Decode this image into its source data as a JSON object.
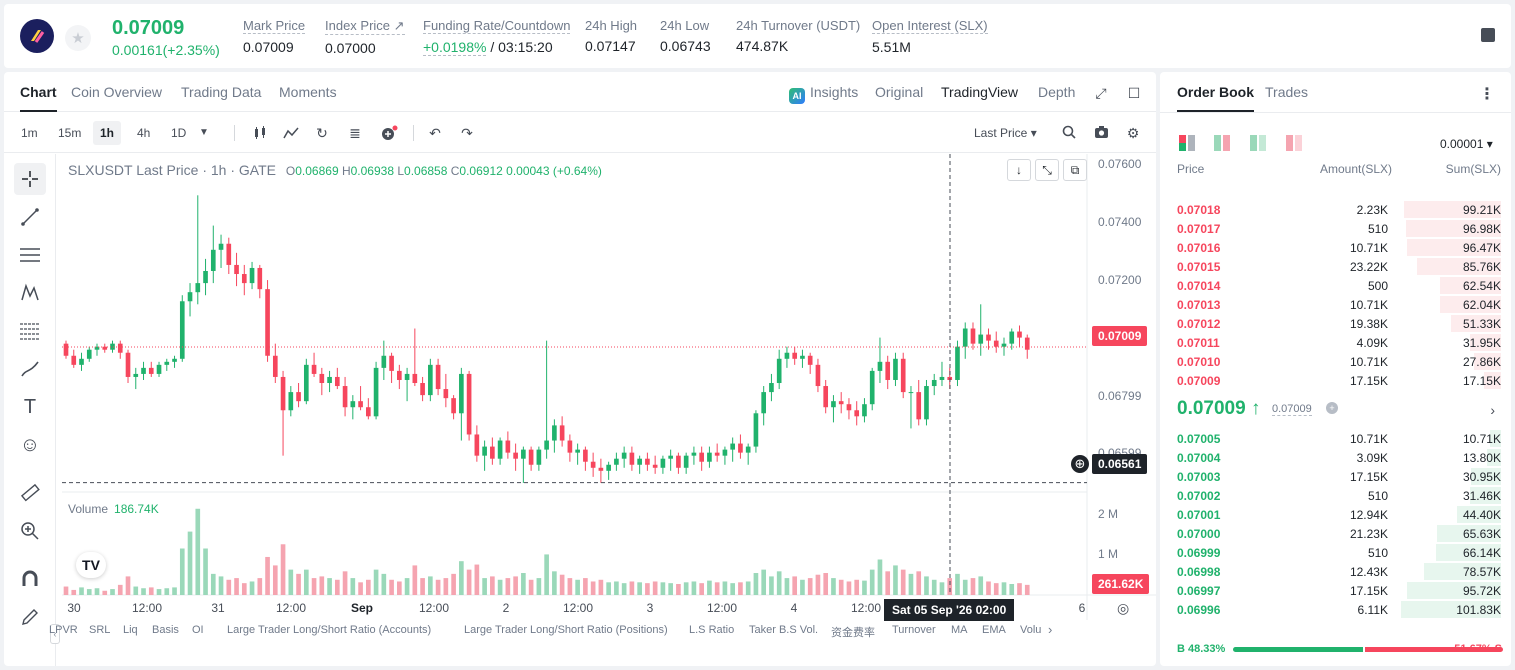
{
  "header": {
    "last_price": "0.07009",
    "change": "0.00161(+2.35%)",
    "stats": [
      {
        "label": "Mark Price",
        "value": "0.07009"
      },
      {
        "label": "Index Price ↗",
        "value": "0.07000"
      },
      {
        "label": "Funding Rate/Countdown",
        "value_rate": "+0.0198%",
        "value_countdown": "/ 03:15:20"
      },
      {
        "label": "24h High",
        "value": "0.07147"
      },
      {
        "label": "24h Low",
        "value": "0.06743"
      },
      {
        "label": "24h Turnover (USDT)",
        "value": "474.87K"
      },
      {
        "label": "Open Interest (SLX)",
        "value": "5.51M"
      }
    ]
  },
  "chart_tabs": {
    "left": [
      "Chart",
      "Coin Overview",
      "Trading Data",
      "Moments"
    ],
    "right": [
      "Insights",
      "Original",
      "TradingView",
      "Depth"
    ],
    "ai_badge": "AI"
  },
  "toolbar": {
    "timeframes": [
      "1m",
      "15m",
      "1h",
      "4h",
      "1D"
    ],
    "active_timeframe": "1h",
    "price_type": "Last Price ▾"
  },
  "chart_legend": {
    "symbol": "SLXUSDT Last Price · 1h · GATE",
    "ohlc": {
      "o": "0.06869",
      "h": "0.06938",
      "l": "0.06858",
      "c": "0.06912",
      "chg": "0.00043 (+0.64%)"
    },
    "volume_label": "Volume",
    "volume_value": "186.74K"
  },
  "chart_data": {
    "type": "candlestick",
    "title": "SLXUSDT Last Price · 1h · GATE",
    "y_ticks": [
      "0.07600",
      "0.07400",
      "0.07200",
      "0.06799",
      "0.06599"
    ],
    "volume_ticks": [
      "2 M",
      "1 M"
    ],
    "x_ticks": [
      "30",
      "12:00",
      "31",
      "12:00",
      "Sep",
      "12:00",
      "2",
      "12:00",
      "3",
      "12:00",
      "4",
      "12:00",
      "6"
    ],
    "ylim": [
      0.0653,
      0.0762
    ],
    "last_price": 0.07009,
    "crosshair_price": 0.06561,
    "current_volume": "261.62K",
    "crosshair_time": "Sat 05 Sep '26   02:00",
    "candles": [
      [
        0.0702,
        0.0703,
        0.0697,
        0.0698
      ],
      [
        0.0698,
        0.07,
        0.0694,
        0.0695
      ],
      [
        0.0695,
        0.0699,
        0.0693,
        0.0697
      ],
      [
        0.0697,
        0.0701,
        0.0696,
        0.07
      ],
      [
        0.07,
        0.0702,
        0.0698,
        0.0701
      ],
      [
        0.0701,
        0.0702,
        0.0699,
        0.07
      ],
      [
        0.07,
        0.0703,
        0.0699,
        0.0702
      ],
      [
        0.0702,
        0.0703,
        0.0697,
        0.0699
      ],
      [
        0.0699,
        0.07,
        0.0689,
        0.0691
      ],
      [
        0.0691,
        0.0694,
        0.0687,
        0.0692
      ],
      [
        0.0692,
        0.0696,
        0.069,
        0.0694
      ],
      [
        0.0694,
        0.0696,
        0.0691,
        0.0692
      ],
      [
        0.0692,
        0.0696,
        0.0691,
        0.0695
      ],
      [
        0.0695,
        0.0697,
        0.0693,
        0.0696
      ],
      [
        0.0696,
        0.0698,
        0.0694,
        0.0697
      ],
      [
        0.0697,
        0.0718,
        0.0696,
        0.0716
      ],
      [
        0.0716,
        0.0722,
        0.0711,
        0.0719
      ],
      [
        0.0719,
        0.0751,
        0.0715,
        0.0722
      ],
      [
        0.0722,
        0.073,
        0.0718,
        0.0726
      ],
      [
        0.0726,
        0.0741,
        0.0722,
        0.0733
      ],
      [
        0.0733,
        0.0738,
        0.0727,
        0.0735
      ],
      [
        0.0735,
        0.0737,
        0.0725,
        0.0728
      ],
      [
        0.0728,
        0.0732,
        0.0721,
        0.0725
      ],
      [
        0.0725,
        0.0728,
        0.0718,
        0.0722
      ],
      [
        0.0722,
        0.0729,
        0.072,
        0.0727
      ],
      [
        0.0727,
        0.0728,
        0.0717,
        0.072
      ],
      [
        0.072,
        0.0723,
        0.0696,
        0.0698
      ],
      [
        0.0698,
        0.0702,
        0.0689,
        0.0691
      ],
      [
        0.0691,
        0.0693,
        0.0665,
        0.068
      ],
      [
        0.068,
        0.0688,
        0.0678,
        0.0686
      ],
      [
        0.0686,
        0.0689,
        0.0681,
        0.0683
      ],
      [
        0.0683,
        0.0697,
        0.0682,
        0.0695
      ],
      [
        0.0695,
        0.0699,
        0.0691,
        0.0692
      ],
      [
        0.0692,
        0.0694,
        0.0685,
        0.0689
      ],
      [
        0.0689,
        0.0693,
        0.0686,
        0.0691
      ],
      [
        0.0691,
        0.0694,
        0.0687,
        0.0688
      ],
      [
        0.0688,
        0.0691,
        0.0678,
        0.0681
      ],
      [
        0.0681,
        0.0685,
        0.0677,
        0.0683
      ],
      [
        0.0683,
        0.0688,
        0.068,
        0.0681
      ],
      [
        0.0681,
        0.0684,
        0.0677,
        0.0678
      ],
      [
        0.0678,
        0.0696,
        0.0677,
        0.0694
      ],
      [
        0.0694,
        0.0703,
        0.069,
        0.0698
      ],
      [
        0.0698,
        0.0699,
        0.0689,
        0.0693
      ],
      [
        0.0693,
        0.0695,
        0.0687,
        0.069
      ],
      [
        0.069,
        0.0694,
        0.0683,
        0.0692
      ],
      [
        0.0692,
        0.0707,
        0.0688,
        0.0689
      ],
      [
        0.0689,
        0.0691,
        0.0683,
        0.0685
      ],
      [
        0.0685,
        0.0697,
        0.0683,
        0.0695
      ],
      [
        0.0695,
        0.0697,
        0.0685,
        0.0687
      ],
      [
        0.0687,
        0.0692,
        0.0681,
        0.0684
      ],
      [
        0.0684,
        0.0685,
        0.0677,
        0.0679
      ],
      [
        0.0679,
        0.0694,
        0.067,
        0.0692
      ],
      [
        0.0692,
        0.0693,
        0.067,
        0.0672
      ],
      [
        0.0672,
        0.0675,
        0.0663,
        0.0665
      ],
      [
        0.0665,
        0.067,
        0.066,
        0.0668
      ],
      [
        0.0668,
        0.0671,
        0.0662,
        0.0664
      ],
      [
        0.0664,
        0.0671,
        0.0662,
        0.067
      ],
      [
        0.067,
        0.0673,
        0.0664,
        0.0666
      ],
      [
        0.0666,
        0.0669,
        0.066,
        0.0664
      ],
      [
        0.0664,
        0.0668,
        0.0656,
        0.0667
      ],
      [
        0.0667,
        0.0668,
        0.066,
        0.0662
      ],
      [
        0.0662,
        0.0668,
        0.066,
        0.0667
      ],
      [
        0.0667,
        0.0703,
        0.0664,
        0.067
      ],
      [
        0.067,
        0.0677,
        0.0666,
        0.0675
      ],
      [
        0.0675,
        0.0678,
        0.0668,
        0.067
      ],
      [
        0.067,
        0.0672,
        0.0663,
        0.0666
      ],
      [
        0.0666,
        0.0669,
        0.0662,
        0.0667
      ],
      [
        0.0667,
        0.0668,
        0.066,
        0.0663
      ],
      [
        0.0663,
        0.0666,
        0.0658,
        0.0661
      ],
      [
        0.0661,
        0.0664,
        0.0656,
        0.066
      ],
      [
        0.066,
        0.0663,
        0.0657,
        0.0662
      ],
      [
        0.0662,
        0.0666,
        0.066,
        0.0664
      ],
      [
        0.0664,
        0.0668,
        0.0661,
        0.0666
      ],
      [
        0.0666,
        0.0668,
        0.066,
        0.0662
      ],
      [
        0.0662,
        0.0665,
        0.0659,
        0.0664
      ],
      [
        0.0664,
        0.0666,
        0.066,
        0.0662
      ],
      [
        0.0662,
        0.0665,
        0.0659,
        0.0661
      ],
      [
        0.0661,
        0.0665,
        0.0659,
        0.0664
      ],
      [
        0.0664,
        0.0667,
        0.066,
        0.0665
      ],
      [
        0.0665,
        0.0666,
        0.0659,
        0.0661
      ],
      [
        0.0661,
        0.0666,
        0.0659,
        0.0665
      ],
      [
        0.0665,
        0.0668,
        0.0662,
        0.0666
      ],
      [
        0.0666,
        0.0668,
        0.066,
        0.0663
      ],
      [
        0.0663,
        0.0668,
        0.0661,
        0.0666
      ],
      [
        0.0666,
        0.0669,
        0.0663,
        0.0665
      ],
      [
        0.0665,
        0.0668,
        0.0662,
        0.0667
      ],
      [
        0.0667,
        0.0671,
        0.0663,
        0.0669
      ],
      [
        0.0669,
        0.0672,
        0.0664,
        0.0666
      ],
      [
        0.0666,
        0.0669,
        0.0662,
        0.0668
      ],
      [
        0.0668,
        0.068,
        0.0666,
        0.0679
      ],
      [
        0.0679,
        0.0688,
        0.0675,
        0.0686
      ],
      [
        0.0686,
        0.0692,
        0.0683,
        0.0689
      ],
      [
        0.0689,
        0.07,
        0.0687,
        0.0697
      ],
      [
        0.0697,
        0.0701,
        0.0694,
        0.0699
      ],
      [
        0.0699,
        0.0701,
        0.0695,
        0.0697
      ],
      [
        0.0697,
        0.07,
        0.0694,
        0.0698
      ],
      [
        0.0698,
        0.0699,
        0.0692,
        0.0695
      ],
      [
        0.0695,
        0.0697,
        0.0686,
        0.0688
      ],
      [
        0.0688,
        0.069,
        0.0679,
        0.0681
      ],
      [
        0.0681,
        0.0685,
        0.0676,
        0.0683
      ],
      [
        0.0683,
        0.0686,
        0.0679,
        0.0682
      ],
      [
        0.0682,
        0.0684,
        0.0677,
        0.068
      ],
      [
        0.068,
        0.0683,
        0.0675,
        0.0678
      ],
      [
        0.0678,
        0.0684,
        0.0676,
        0.0682
      ],
      [
        0.0682,
        0.0694,
        0.068,
        0.0693
      ],
      [
        0.0693,
        0.0704,
        0.0689,
        0.0696
      ],
      [
        0.0696,
        0.0698,
        0.0687,
        0.069
      ],
      [
        0.069,
        0.0699,
        0.0688,
        0.0697
      ],
      [
        0.0697,
        0.0699,
        0.0684,
        0.0686
      ],
      [
        0.0686,
        0.0688,
        0.0674,
        0.0686
      ],
      [
        0.0686,
        0.069,
        0.0675,
        0.0677
      ],
      [
        0.0677,
        0.069,
        0.0675,
        0.0688
      ],
      [
        0.0688,
        0.0692,
        0.0685,
        0.069
      ],
      [
        0.069,
        0.0696,
        0.0688,
        0.0691
      ],
      [
        0.0691,
        0.0694,
        0.0687,
        0.069
      ],
      [
        0.069,
        0.0703,
        0.0688,
        0.0701
      ],
      [
        0.0701,
        0.0709,
        0.0697,
        0.0707
      ],
      [
        0.0707,
        0.0709,
        0.07,
        0.0702
      ],
      [
        0.0702,
        0.0715,
        0.0698,
        0.0705
      ],
      [
        0.0705,
        0.0707,
        0.07,
        0.0703
      ],
      [
        0.0703,
        0.0706,
        0.0699,
        0.0701
      ],
      [
        0.0701,
        0.0704,
        0.0698,
        0.0702
      ],
      [
        0.0702,
        0.0707,
        0.07,
        0.0706
      ],
      [
        0.0706,
        0.0708,
        0.0701,
        0.0704
      ],
      [
        0.0704,
        0.0705,
        0.0697,
        0.07
      ]
    ],
    "volumes": [
      0.1,
      0.06,
      0.09,
      0.07,
      0.08,
      0.05,
      0.07,
      0.12,
      0.22,
      0.1,
      0.08,
      0.09,
      0.07,
      0.08,
      0.09,
      0.55,
      0.75,
      1.02,
      0.55,
      0.25,
      0.22,
      0.18,
      0.2,
      0.14,
      0.16,
      0.2,
      0.45,
      0.35,
      0.6,
      0.3,
      0.25,
      0.3,
      0.2,
      0.22,
      0.2,
      0.18,
      0.28,
      0.2,
      0.15,
      0.18,
      0.3,
      0.25,
      0.18,
      0.16,
      0.2,
      0.35,
      0.2,
      0.22,
      0.18,
      0.2,
      0.25,
      0.4,
      0.3,
      0.36,
      0.2,
      0.22,
      0.18,
      0.2,
      0.22,
      0.26,
      0.18,
      0.2,
      0.48,
      0.28,
      0.24,
      0.2,
      0.18,
      0.2,
      0.16,
      0.18,
      0.15,
      0.16,
      0.14,
      0.16,
      0.15,
      0.14,
      0.16,
      0.15,
      0.14,
      0.13,
      0.15,
      0.16,
      0.14,
      0.17,
      0.15,
      0.16,
      0.14,
      0.15,
      0.16,
      0.26,
      0.3,
      0.22,
      0.28,
      0.2,
      0.22,
      0.18,
      0.2,
      0.24,
      0.26,
      0.2,
      0.18,
      0.16,
      0.18,
      0.17,
      0.3,
      0.42,
      0.28,
      0.35,
      0.3,
      0.25,
      0.28,
      0.22,
      0.18,
      0.15,
      0.2,
      0.25,
      0.18,
      0.2,
      0.22,
      0.16,
      0.14,
      0.15,
      0.13,
      0.14,
      0.12
    ]
  },
  "indicators": [
    "LPVR",
    "SRL",
    "Liq",
    "Basis",
    "OI",
    "Large Trader Long/Short Ratio (Accounts)",
    "Large Trader Long/Short Ratio (Positions)",
    "L.S Ratio",
    "Taker B.S Vol.",
    "资金费率",
    "Turnover",
    "MA",
    "EMA",
    "Volu"
  ],
  "orderbook": {
    "tabs": [
      "Order Book",
      "Trades"
    ],
    "precision": "0.00001 ▾",
    "headers": {
      "price": "Price",
      "amount": "Amount(SLX)",
      "sum": "Sum(SLX)"
    },
    "asks": [
      {
        "price": "0.07018",
        "amount": "2.23K",
        "sum": "99.21K",
        "depth": 0.97
      },
      {
        "price": "0.07017",
        "amount": "510",
        "sum": "96.98K",
        "depth": 0.95
      },
      {
        "price": "0.07016",
        "amount": "10.71K",
        "sum": "96.47K",
        "depth": 0.94
      },
      {
        "price": "0.07015",
        "amount": "23.22K",
        "sum": "85.76K",
        "depth": 0.84
      },
      {
        "price": "0.07014",
        "amount": "500",
        "sum": "62.54K",
        "depth": 0.61
      },
      {
        "price": "0.07013",
        "amount": "10.71K",
        "sum": "62.04K",
        "depth": 0.61
      },
      {
        "price": "0.07012",
        "amount": "19.38K",
        "sum": "51.33K",
        "depth": 0.5
      },
      {
        "price": "0.07011",
        "amount": "4.09K",
        "sum": "31.95K",
        "depth": 0.31
      },
      {
        "price": "0.07010",
        "amount": "10.71K",
        "sum": "27.86K",
        "depth": 0.27
      },
      {
        "price": "0.07009",
        "amount": "17.15K",
        "sum": "17.15K",
        "depth": 0.17
      }
    ],
    "mid_price": "0.07009 ↑",
    "mid_mark": "0.07009",
    "bids": [
      {
        "price": "0.07005",
        "amount": "10.71K",
        "sum": "10.71K",
        "depth": 0.11
      },
      {
        "price": "0.07004",
        "amount": "3.09K",
        "sum": "13.80K",
        "depth": 0.14
      },
      {
        "price": "0.07003",
        "amount": "17.15K",
        "sum": "30.95K",
        "depth": 0.3
      },
      {
        "price": "0.07002",
        "amount": "510",
        "sum": "31.46K",
        "depth": 0.31
      },
      {
        "price": "0.07001",
        "amount": "12.94K",
        "sum": "44.40K",
        "depth": 0.44
      },
      {
        "price": "0.07000",
        "amount": "21.23K",
        "sum": "65.63K",
        "depth": 0.64
      },
      {
        "price": "0.06999",
        "amount": "510",
        "sum": "66.14K",
        "depth": 0.65
      },
      {
        "price": "0.06998",
        "amount": "12.43K",
        "sum": "78.57K",
        "depth": 0.77
      },
      {
        "price": "0.06997",
        "amount": "17.15K",
        "sum": "95.72K",
        "depth": 0.94
      },
      {
        "price": "0.06996",
        "amount": "6.11K",
        "sum": "101.83K",
        "depth": 1.0
      }
    ],
    "buy_ratio": "B 48.33%",
    "sell_ratio": "51.67% S",
    "buy_fraction": 0.4833
  },
  "colors": {
    "up": "#20b26c",
    "down": "#f6465d",
    "up_vol": "#9ad8b9",
    "down_vol": "#f5a4b0"
  }
}
